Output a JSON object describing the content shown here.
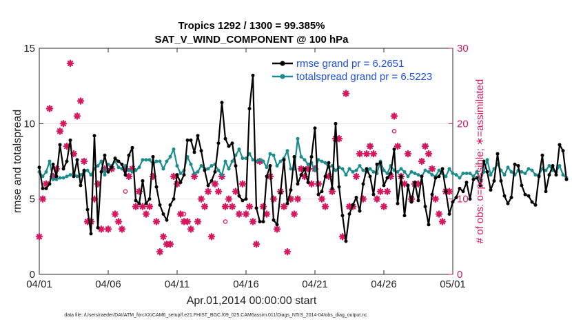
{
  "chart_data": {
    "type": "line",
    "title_line1": "Tropics 1292 / 1300 = 99.385%",
    "title_line2": "SAT_V_WIND_COMPONENT @ 100 hPa",
    "xlabel": "Apr.01,2014 00:00:00 start",
    "ylabel": "rmse and totalspread",
    "y2label": "# of obs: o=possible; ∗=assimilated",
    "footer": "data file: /Users/raeder/DAI/ATM_forcXX/CAM6_setup/f.e21.FHIST_BGC.f09_025.CAM6assim.011/Diags_NTrS_2014-04/obs_diag_output.nc",
    "xlim": [
      0,
      30
    ],
    "ylim": [
      0,
      15
    ],
    "y2lim": [
      0,
      30
    ],
    "x_ticks": [
      0,
      5,
      10,
      15,
      20,
      25,
      30
    ],
    "x_tick_labels": [
      "04/01",
      "04/06",
      "04/11",
      "04/16",
      "04/21",
      "04/26",
      "05/01"
    ],
    "y_ticks": [
      0,
      5,
      10,
      15
    ],
    "y_tick_labels": [
      "0",
      "5",
      "10",
      "15"
    ],
    "y2_ticks": [
      0,
      10,
      20,
      30
    ],
    "y2_tick_labels": [
      "0",
      "10",
      "20",
      "30"
    ],
    "x_step": 0.25,
    "series": [
      {
        "name": "rmse grand pr = 6.2651",
        "color": "#000000",
        "marker": "circle",
        "values": [
          7.1,
          5.7,
          5.7,
          6.0,
          7.3,
          6.5,
          8.6,
          7.0,
          7.5,
          8.9,
          6.5,
          7.6,
          5.9,
          6.9,
          4.3,
          2.7,
          9.2,
          3.1,
          6.8,
          7.9,
          6.8,
          7.1,
          7.7,
          7.5,
          7.3,
          6.6,
          7.9,
          8.4,
          4.9,
          4.7,
          6.2,
          4.7,
          5.0,
          7.8,
          5.8,
          4.6,
          4.0,
          3.6,
          4.6,
          5.0,
          6.6,
          6.1,
          6.6,
          8.9,
          8.9,
          8.1,
          9.2,
          8.2,
          6.9,
          5.9,
          6.2,
          6.8,
          8.7,
          11.4,
          9.0,
          8.5,
          8.7,
          7.2,
          5.2,
          4.9,
          5.0,
          11.0,
          13.2,
          4.4,
          3.5,
          3.5,
          6.5,
          7.2,
          3.6,
          3.3,
          5.4,
          7.6,
          4.7,
          5.6,
          7.8,
          6.0,
          6.6,
          7.0,
          6.1,
          7.8,
          9.7,
          5.3,
          5.5,
          6.5,
          7.4,
          5.7,
          10.0,
          5.8,
          3.9,
          2.2,
          4.0,
          4.6,
          5.1,
          4.2,
          6.0,
          7.0,
          6.5,
          5.3,
          7.3,
          7.4,
          5.9,
          6.4,
          6.7,
          8.3,
          4.7,
          6.5,
          3.9,
          5.9,
          4.8,
          6.1,
          4.9,
          6.5,
          4.5,
          3.3,
          5.3,
          6.4,
          6.5,
          7.0,
          5.5,
          4.0,
          4.8,
          5.1,
          5.7,
          5.5,
          6.1,
          5.0,
          6.3,
          6.4,
          5.9,
          7.5,
          6.8,
          5.6,
          6.2,
          8.0,
          6.2,
          5.2,
          4.7,
          5.1,
          7.3,
          7.2,
          5.9,
          5.3,
          5.2,
          4.8,
          4.6,
          6.5,
          7.9,
          5.5,
          6.6,
          7.2,
          6.6,
          8.6,
          8.2,
          6.3
        ]
      },
      {
        "name": "totalspread grand pr = 6.5223",
        "color": "#1a8c8c",
        "marker": "circle",
        "values": [
          6.8,
          6.5,
          6.8,
          7.5,
          6.3,
          6.3,
          6.4,
          6.4,
          6.5,
          6.6,
          6.7,
          6.5,
          6.6,
          6.8,
          6.9,
          6.6,
          7.0,
          7.2,
          7.5,
          6.6,
          7.3,
          7.2,
          7.5,
          7.1,
          7.0,
          7.2,
          6.9,
          6.8,
          6.9,
          7.1,
          7.6,
          7.6,
          7.6,
          7.3,
          7.5,
          7.5,
          7.0,
          7.5,
          7.8,
          8.3,
          7.2,
          6.7,
          6.9,
          7.8,
          7.3,
          6.7,
          6.8,
          7.2,
          7.0,
          7.0,
          7.2,
          7.3,
          6.9,
          6.6,
          7.5,
          7.0,
          7.5,
          7.9,
          8.3,
          7.7,
          7.7,
          8.0,
          7.6,
          7.5,
          7.6,
          7.5,
          7.1,
          8.0,
          7.9,
          7.2,
          7.5,
          7.7,
          8.2,
          7.0,
          7.0,
          9.0,
          7.8,
          7.6,
          7.3,
          7.4,
          6.9,
          7.6,
          7.5,
          7.4,
          7.1,
          7.2,
          6.9,
          7.1,
          7.0,
          6.6,
          7.0,
          6.8,
          6.9,
          7.2,
          6.9,
          6.8,
          7.0,
          6.8,
          6.7,
          7.5,
          6.9,
          6.7,
          7.2,
          6.9,
          6.8,
          7.0,
          6.8,
          6.5,
          6.8,
          6.7,
          6.6,
          6.5,
          6.9,
          6.8,
          6.6,
          6.5,
          6.9,
          6.7,
          6.5,
          7.0,
          6.7,
          6.6,
          6.4,
          6.7,
          6.7,
          6.7,
          6.5,
          6.8,
          6.3,
          6.8,
          7.6,
          6.6,
          7.0,
          7.3,
          6.9,
          6.6,
          7.1,
          6.8,
          6.6,
          6.9,
          6.8,
          6.7,
          7.0,
          6.9,
          6.6,
          6.6,
          7.0,
          6.9,
          7.2,
          6.9,
          6.8,
          7.2,
          6.6,
          6.4
        ]
      }
    ],
    "assimilated": {
      "name": "# assimilated (right axis)",
      "color": "#d6175e",
      "marker": "asterisk",
      "points": [
        [
          0.0,
          5
        ],
        [
          0.25,
          10
        ],
        [
          0.5,
          12
        ],
        [
          0.75,
          22
        ],
        [
          1.0,
          13
        ],
        [
          1.25,
          14
        ],
        [
          1.5,
          19
        ],
        [
          1.75,
          20
        ],
        [
          2.0,
          17
        ],
        [
          2.25,
          28
        ],
        [
          2.5,
          16
        ],
        [
          2.75,
          21
        ],
        [
          3.0,
          23
        ],
        [
          3.25,
          15
        ],
        [
          3.5,
          7
        ],
        [
          3.75,
          7
        ],
        [
          4.0,
          10
        ],
        [
          4.25,
          12
        ],
        [
          4.5,
          6
        ],
        [
          4.75,
          14
        ],
        [
          5.0,
          6
        ],
        [
          5.25,
          14
        ],
        [
          5.5,
          8
        ],
        [
          5.75,
          7
        ],
        [
          6.0,
          6
        ],
        [
          6.25,
          14
        ],
        [
          6.5,
          13
        ],
        [
          6.75,
          14
        ],
        [
          7.0,
          9
        ],
        [
          7.25,
          11
        ],
        [
          7.5,
          9
        ],
        [
          7.75,
          8
        ],
        [
          8.0,
          9
        ],
        [
          8.25,
          13
        ],
        [
          8.5,
          7
        ],
        [
          8.75,
          3
        ],
        [
          9.0,
          5
        ],
        [
          9.25,
          4
        ],
        [
          9.5,
          4
        ],
        [
          9.75,
          13
        ],
        [
          10.0,
          12
        ],
        [
          10.25,
          8
        ],
        [
          10.5,
          7
        ],
        [
          10.75,
          7
        ],
        [
          11.0,
          6
        ],
        [
          11.25,
          13
        ],
        [
          11.5,
          7
        ],
        [
          11.75,
          10
        ],
        [
          12.0,
          9
        ],
        [
          12.25,
          11
        ],
        [
          12.5,
          5
        ],
        [
          12.75,
          12
        ],
        [
          13.0,
          11
        ],
        [
          13.25,
          13
        ],
        [
          13.5,
          9
        ],
        [
          13.75,
          10
        ],
        [
          14.0,
          9
        ],
        [
          14.25,
          11
        ],
        [
          14.5,
          8
        ],
        [
          14.75,
          12
        ],
        [
          15.0,
          8
        ],
        [
          15.25,
          9
        ],
        [
          15.5,
          7
        ],
        [
          15.75,
          4
        ],
        [
          16.0,
          15
        ],
        [
          16.25,
          9
        ],
        [
          16.5,
          8
        ],
        [
          16.75,
          13
        ],
        [
          17.0,
          10
        ],
        [
          17.25,
          6
        ],
        [
          17.5,
          11
        ],
        [
          17.75,
          9
        ],
        [
          18.0,
          3
        ],
        [
          18.25,
          10
        ],
        [
          18.5,
          8
        ],
        [
          18.75,
          10
        ],
        [
          19.0,
          14
        ],
        [
          19.25,
          13
        ],
        [
          19.5,
          14
        ],
        [
          19.75,
          12
        ],
        [
          20.0,
          14
        ],
        [
          20.25,
          12
        ],
        [
          20.5,
          10
        ],
        [
          20.75,
          9
        ],
        [
          21.0,
          13
        ],
        [
          21.25,
          11
        ],
        [
          21.5,
          18
        ],
        [
          21.75,
          18
        ],
        [
          22.0,
          5
        ],
        [
          22.25,
          24
        ],
        [
          22.5,
          9
        ],
        [
          22.75,
          9
        ],
        [
          23.0,
          13
        ],
        [
          23.25,
          16
        ],
        [
          23.5,
          10
        ],
        [
          23.75,
          16
        ],
        [
          24.0,
          17
        ],
        [
          24.25,
          16
        ],
        [
          24.5,
          10
        ],
        [
          24.75,
          11
        ],
        [
          25.0,
          9
        ],
        [
          25.25,
          11
        ],
        [
          25.5,
          13
        ],
        [
          25.75,
          21
        ],
        [
          26.0,
          17
        ],
        [
          26.25,
          13
        ],
        [
          26.5,
          12
        ],
        [
          26.75,
          16
        ],
        [
          27.0,
          10
        ],
        [
          27.25,
          12
        ],
        [
          27.5,
          12
        ],
        [
          27.75,
          15
        ],
        [
          28.0,
          17
        ],
        [
          28.25,
          16
        ],
        [
          28.5,
          14
        ],
        [
          28.75,
          10
        ],
        [
          29.0,
          8
        ],
        [
          29.25,
          7
        ],
        [
          29.5,
          11
        ],
        [
          29.75,
          11
        ]
      ]
    },
    "possible_only": {
      "name": "# possible (right axis)",
      "color": "#d6175e",
      "marker": "open-circle",
      "points": [
        [
          10.25,
          8
        ],
        [
          10.5,
          8
        ],
        [
          13.5,
          7
        ],
        [
          25.75,
          19
        ],
        [
          6.25,
          11
        ]
      ]
    }
  }
}
